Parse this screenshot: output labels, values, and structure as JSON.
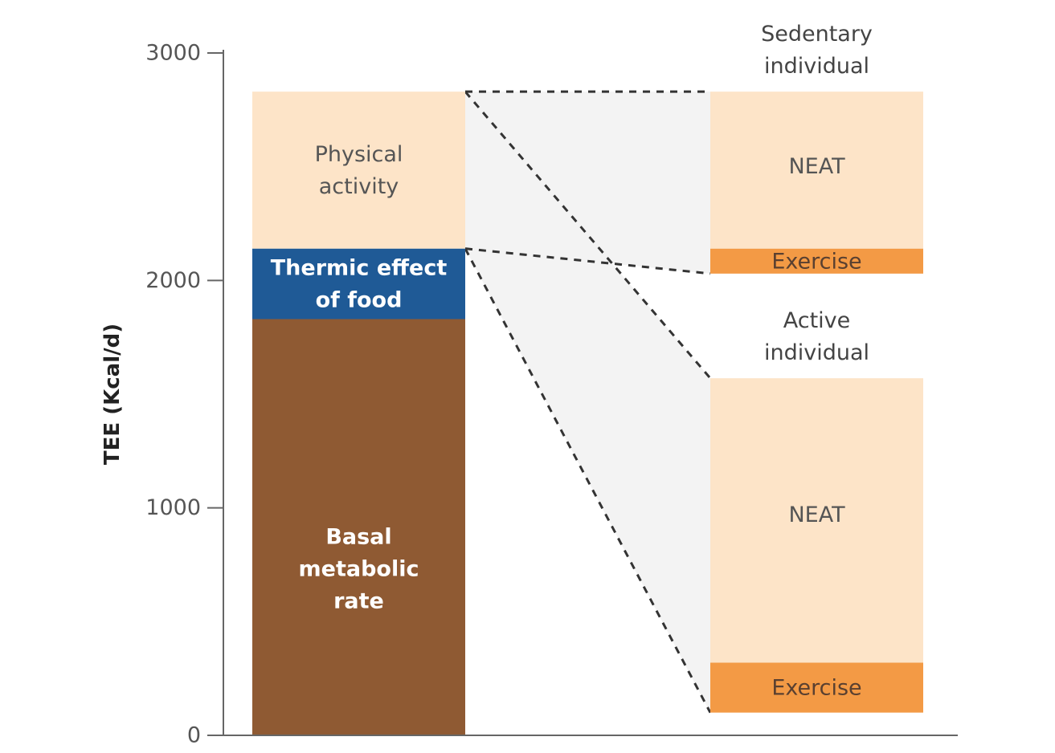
{
  "chart_data": {
    "type": "bar",
    "stacked": true,
    "ylabel": "TEE (Kcal/d)",
    "ylim": [
      0,
      3000
    ],
    "yticks": [
      0,
      1000,
      2000,
      3000
    ],
    "grid": false,
    "main_bar": {
      "segments": [
        {
          "label": "Basal metabolic rate",
          "lines": [
            "Basal",
            "metabolic",
            "rate"
          ],
          "start": 0,
          "end": 1830,
          "color": "#8f5a33",
          "text_color": "#ffffff",
          "bold": true
        },
        {
          "label": "Thermic effect of food",
          "lines": [
            "Thermic effect",
            "of food"
          ],
          "start": 1830,
          "end": 2140,
          "color": "#1f5a96",
          "text_color": "#ffffff",
          "bold": true
        },
        {
          "label": "Physical activity",
          "lines": [
            "Physical",
            "activity"
          ],
          "start": 2140,
          "end": 2830,
          "color": "#fde4c8",
          "text_color": "#555555",
          "bold": false
        }
      ]
    },
    "breakdowns": [
      {
        "title_lines": [
          "Sedentary",
          "individual"
        ],
        "segments": [
          {
            "label": "Exercise",
            "start": 2030,
            "end": 2140,
            "color": "#f39a45",
            "text_color": "#5a4030"
          },
          {
            "label": "NEAT",
            "start": 2140,
            "end": 2830,
            "color": "#fde4c8",
            "text_color": "#555555"
          }
        ]
      },
      {
        "title_lines": [
          "Active",
          "individual"
        ],
        "segments": [
          {
            "label": "Exercise",
            "start": 100,
            "end": 320,
            "color": "#f39a45",
            "text_color": "#5a4030"
          },
          {
            "label": "NEAT",
            "start": 320,
            "end": 1570,
            "color": "#fde4c8",
            "text_color": "#555555"
          }
        ]
      }
    ]
  }
}
